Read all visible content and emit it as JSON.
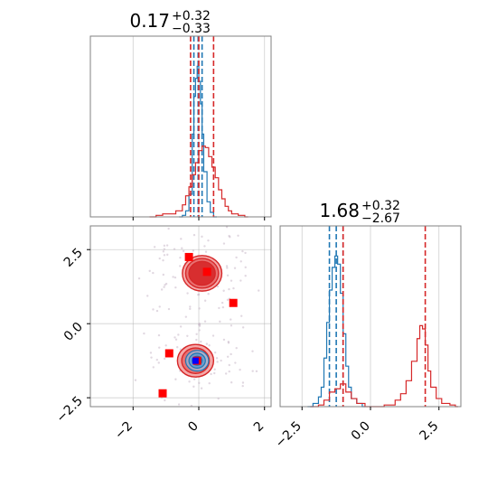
{
  "chart_data": {
    "type": "corner",
    "colors": {
      "blue": "#1f77b4",
      "red": "#d62728",
      "grid": "#b0b0b0",
      "frame": "#808080",
      "marker": "#ff0000",
      "marker_blue": "#0000ff"
    },
    "panels": [
      {
        "id": "hist-param-0",
        "kind": "histogram",
        "title_value": "0.17",
        "title_sup": "+0.32",
        "title_sub": "−0.33",
        "xlim": [
          -3.3,
          2.2
        ],
        "x_ticks": [
          -2,
          0,
          2
        ],
        "grid": true,
        "series": [
          {
            "name": "",
            "color": "#1f77b4",
            "quantiles": [
              -0.15,
              -0.02,
              0.1
            ],
            "bins": [
              [
                -0.6,
                0
              ],
              [
                -0.5,
                0.01
              ],
              [
                -0.4,
                0.04
              ],
              [
                -0.3,
                0.15
              ],
              [
                -0.2,
                0.55
              ],
              [
                -0.15,
                0.8
              ],
              [
                -0.1,
                0.92
              ],
              [
                -0.05,
                1.0
              ],
              [
                0.0,
                0.9
              ],
              [
                0.05,
                0.75
              ],
              [
                0.1,
                0.55
              ],
              [
                0.15,
                0.3
              ],
              [
                0.25,
                0.1
              ],
              [
                0.35,
                0.03
              ],
              [
                0.45,
                0.0
              ]
            ]
          },
          {
            "name": "",
            "color": "#d62728",
            "quantiles": [
              -0.25,
              0.0,
              0.45
            ],
            "bins": [
              [
                -1.5,
                0
              ],
              [
                -1.3,
                0.01
              ],
              [
                -1.1,
                0.02
              ],
              [
                -0.9,
                0.02
              ],
              [
                -0.7,
                0.04
              ],
              [
                -0.5,
                0.08
              ],
              [
                -0.4,
                0.14
              ],
              [
                -0.3,
                0.2
              ],
              [
                -0.2,
                0.28
              ],
              [
                -0.1,
                0.36
              ],
              [
                0.0,
                0.44
              ],
              [
                0.1,
                0.47
              ],
              [
                0.2,
                0.46
              ],
              [
                0.3,
                0.4
              ],
              [
                0.4,
                0.33
              ],
              [
                0.5,
                0.26
              ],
              [
                0.6,
                0.18
              ],
              [
                0.7,
                0.12
              ],
              [
                0.8,
                0.07
              ],
              [
                0.9,
                0.04
              ],
              [
                1.0,
                0.02
              ],
              [
                1.2,
                0.01
              ],
              [
                1.4,
                0.0
              ]
            ]
          }
        ]
      },
      {
        "id": "hist-param-1",
        "kind": "histogram",
        "title_value": "1.68",
        "title_sup": "+0.32",
        "title_sub": "−2.67",
        "xlim": [
          -3.3,
          3.3
        ],
        "x_ticks": [
          -2.5,
          0.0,
          2.5
        ],
        "x_tick_labels": [
          "−2.5",
          "0.0",
          "2.5"
        ],
        "grid": true,
        "series": [
          {
            "name": "",
            "color": "#1f77b4",
            "quantiles": [
              -1.5,
              -1.25,
              -1.0
            ],
            "bins": [
              [
                -2.3,
                0
              ],
              [
                -2.1,
                0.02
              ],
              [
                -1.9,
                0.06
              ],
              [
                -1.8,
                0.12
              ],
              [
                -1.7,
                0.3
              ],
              [
                -1.6,
                0.52
              ],
              [
                -1.5,
                0.72
              ],
              [
                -1.4,
                0.86
              ],
              [
                -1.3,
                0.93
              ],
              [
                -1.2,
                0.88
              ],
              [
                -1.1,
                0.7
              ],
              [
                -1.0,
                0.45
              ],
              [
                -0.9,
                0.25
              ],
              [
                -0.8,
                0.12
              ],
              [
                -0.7,
                0.05
              ],
              [
                -0.5,
                0.02
              ],
              [
                -0.3,
                0.0
              ]
            ]
          },
          {
            "name": "",
            "color": "#d62728",
            "quantiles": [
              -1.0,
              2.0
            ],
            "bins": [
              [
                -2.2,
                0
              ],
              [
                -1.9,
                0.01
              ],
              [
                -1.7,
                0.04
              ],
              [
                -1.5,
                0.09
              ],
              [
                -1.3,
                0.11
              ],
              [
                -1.1,
                0.14
              ],
              [
                -0.9,
                0.09
              ],
              [
                -0.7,
                0.05
              ],
              [
                -0.5,
                0.02
              ],
              [
                -0.2,
                0.0
              ],
              [
                0.5,
                0.01
              ],
              [
                0.9,
                0.04
              ],
              [
                1.1,
                0.08
              ],
              [
                1.3,
                0.16
              ],
              [
                1.5,
                0.28
              ],
              [
                1.7,
                0.42
              ],
              [
                1.8,
                0.5
              ],
              [
                1.9,
                0.48
              ],
              [
                2.0,
                0.38
              ],
              [
                2.1,
                0.22
              ],
              [
                2.2,
                0.12
              ],
              [
                2.4,
                0.05
              ],
              [
                2.6,
                0.02
              ],
              [
                2.9,
                0.01
              ],
              [
                3.1,
                0.0
              ]
            ]
          }
        ]
      },
      {
        "id": "scatter-2d",
        "kind": "scatter2d",
        "xlim": [
          -3.3,
          2.2
        ],
        "ylim": [
          -2.8,
          3.3
        ],
        "x_ticks": [
          -2,
          0,
          2
        ],
        "x_tick_labels": [
          "−2",
          "0",
          "2"
        ],
        "y_ticks": [
          -2.5,
          0.0,
          2.5
        ],
        "y_tick_labels": [
          "−2.5",
          "0.0",
          "2.5"
        ],
        "grid": true,
        "red_clusters": [
          {
            "cx": 0.1,
            "cy": 1.7,
            "rx": [
              0.6,
              0.5,
              0.4
            ],
            "ry": [
              0.6,
              0.5,
              0.4
            ]
          },
          {
            "cx": -0.1,
            "cy": -1.25,
            "rx": [
              0.55,
              0.42,
              0.3
            ],
            "ry": [
              0.55,
              0.43,
              0.3
            ]
          }
        ],
        "blue_cluster": {
          "cx": -0.05,
          "cy": -1.25,
          "rx": [
            0.35,
            0.25,
            0.15
          ],
          "ry": [
            0.35,
            0.25,
            0.15
          ]
        },
        "red_markers": [
          [
            -0.3,
            2.25
          ],
          [
            0.25,
            1.75
          ],
          [
            1.05,
            0.7
          ],
          [
            -0.9,
            -1.0
          ],
          [
            -1.1,
            -2.35
          ],
          [
            -0.05,
            -1.25
          ]
        ],
        "blue_marker": [
          -0.1,
          -1.25
        ]
      }
    ]
  }
}
